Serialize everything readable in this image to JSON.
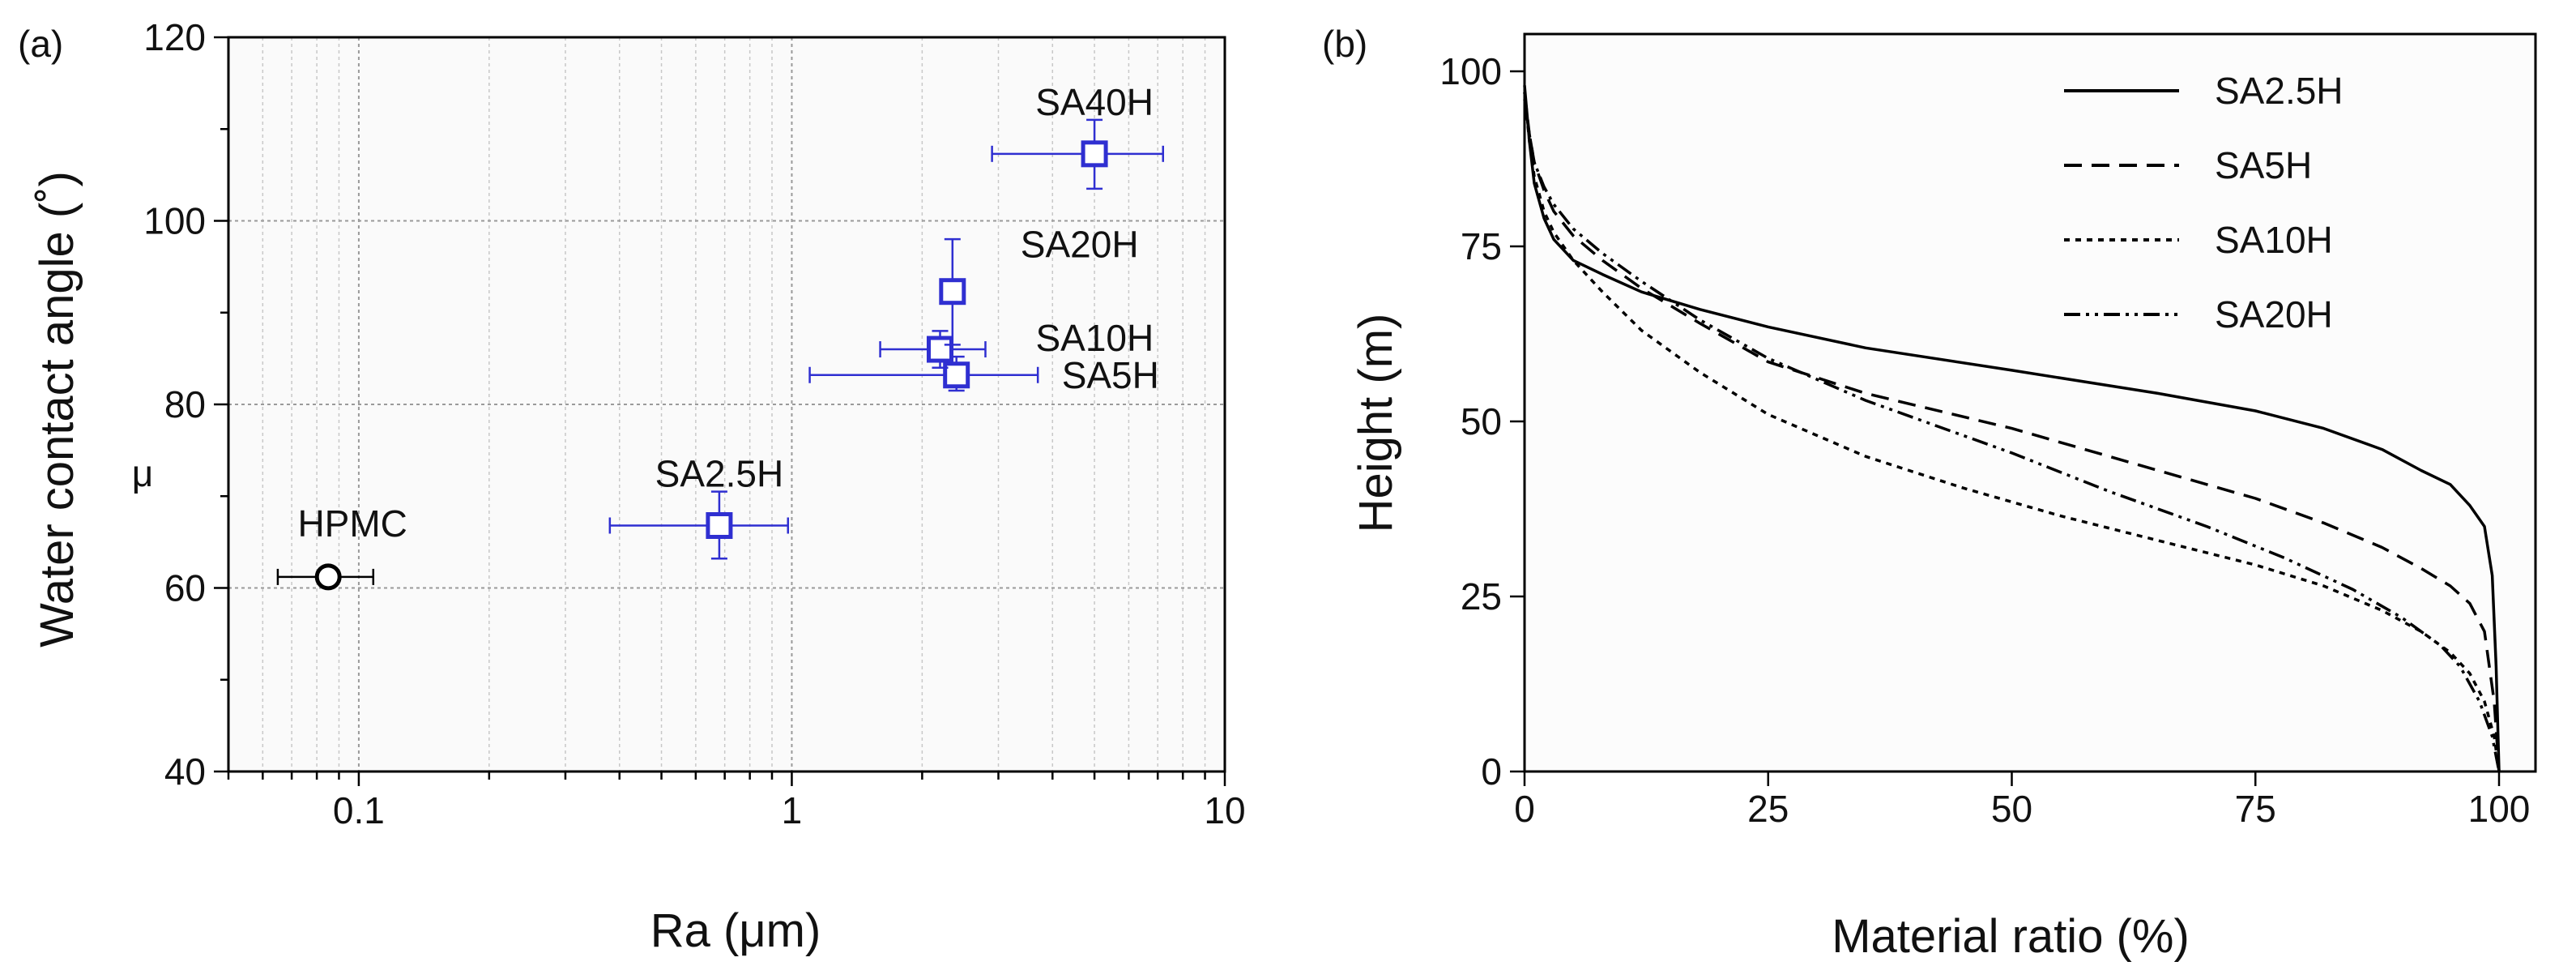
{
  "chart_data": [
    {
      "panel": "(a)",
      "type": "scatter",
      "xlabel": "Ra (μm)",
      "ylabel": "Water contact angle (˚)",
      "ylabel_extra": "μ",
      "xscale": "log",
      "xlim": [
        0.05,
        10
      ],
      "ylim": [
        40,
        120
      ],
      "xticks": [
        0.1,
        1,
        10
      ],
      "xtick_labels": [
        "0.1",
        "1",
        "10"
      ],
      "yticks": [
        40,
        60,
        80,
        100,
        120
      ],
      "ytick_labels": [
        "40",
        "60",
        "80",
        "100",
        "120"
      ],
      "grid": true,
      "points": [
        {
          "label": "HPMC",
          "x": 0.085,
          "y": 61.2,
          "xerr": [
            0.065,
            0.108
          ],
          "yerr": [
            61.2,
            61.2
          ],
          "marker": "circle",
          "color": "#000000",
          "label_pos": "above"
        },
        {
          "label": "SA2.5H",
          "x": 0.68,
          "y": 66.8,
          "xerr": [
            0.38,
            0.98
          ],
          "yerr": [
            63.2,
            70.5
          ],
          "marker": "square",
          "color": "#2f2fd1",
          "label_pos": "above"
        },
        {
          "label": "SA5H",
          "x": 2.4,
          "y": 83.2,
          "xerr": [
            1.1,
            3.7
          ],
          "yerr": [
            81.5,
            85.2
          ],
          "marker": "square",
          "color": "#2f2fd1",
          "label_pos": "right"
        },
        {
          "label": "SA10H",
          "x": 2.2,
          "y": 86.0,
          "xerr": [
            1.6,
            2.8
          ],
          "yerr": [
            84.0,
            88.0
          ],
          "marker": "square",
          "color": "#2f2fd1",
          "label_pos": "right"
        },
        {
          "label": "SA20H",
          "x": 2.35,
          "y": 92.3,
          "xerr": [
            2.25,
            2.45
          ],
          "yerr": [
            86.5,
            98.0
          ],
          "marker": "square",
          "color": "#2f2fd1",
          "label_pos": "above-right"
        },
        {
          "label": "SA40H",
          "x": 5.0,
          "y": 107.3,
          "xerr": [
            2.9,
            7.2
          ],
          "yerr": [
            103.5,
            111.0
          ],
          "marker": "square",
          "color": "#2f2fd1",
          "label_pos": "above"
        }
      ]
    },
    {
      "panel": "(b)",
      "type": "line",
      "xlabel": "Material ratio  (%)",
      "ylabel": "Height (m)",
      "xlim": [
        0,
        100
      ],
      "ylim": [
        0,
        100
      ],
      "xticks": [
        0,
        25,
        50,
        75,
        100
      ],
      "xtick_labels": [
        "0",
        "25",
        "50",
        "75",
        "100"
      ],
      "yticks": [
        0,
        25,
        50,
        75,
        100
      ],
      "ytick_labels": [
        "0",
        "25",
        "50",
        "75",
        "100"
      ],
      "grid": false,
      "legend": "top-right",
      "series": [
        {
          "name": "SA2.5H",
          "style": "solid",
          "x": [
            0,
            0.5,
            1,
            2,
            3,
            5,
            8,
            12,
            18,
            25,
            35,
            50,
            65,
            75,
            82,
            88,
            92,
            95,
            97,
            98.5,
            99.3,
            99.7,
            100
          ],
          "y": [
            98,
            90,
            84,
            79,
            76,
            73,
            71,
            68.5,
            66,
            63.5,
            60.5,
            57.3,
            54,
            51.5,
            49,
            46,
            43,
            41,
            38,
            35,
            28,
            15,
            0
          ]
        },
        {
          "name": "SA5H",
          "style": "dashed",
          "x": [
            0,
            0.5,
            1,
            2,
            3,
            5,
            8,
            12,
            18,
            25,
            35,
            50,
            65,
            75,
            82,
            88,
            92,
            95,
            97,
            98.5,
            99.5,
            100
          ],
          "y": [
            97,
            91,
            87,
            83,
            80,
            76.5,
            73,
            69,
            64,
            58.5,
            54,
            49,
            43,
            39,
            35.5,
            32,
            29,
            26.5,
            24,
            20,
            10,
            0
          ]
        },
        {
          "name": "SA10H",
          "style": "dotted",
          "x": [
            0,
            0.5,
            1,
            2,
            3,
            5,
            8,
            12,
            18,
            25,
            35,
            45,
            55,
            65,
            75,
            82,
            88,
            92,
            95,
            97,
            98.5,
            99.5,
            100
          ],
          "y": [
            97,
            90,
            85,
            80,
            77,
            73,
            68.5,
            63,
            57,
            51,
            45,
            40.5,
            36.5,
            33,
            29.5,
            26.5,
            23,
            20,
            17,
            14,
            10,
            5,
            0
          ]
        },
        {
          "name": "SA20H",
          "style": "dashdotdot",
          "x": [
            0,
            0.5,
            1,
            2,
            3,
            5,
            8,
            12,
            18,
            25,
            35,
            50,
            60,
            70,
            78,
            85,
            90,
            94,
            96,
            98,
            99.3,
            100
          ],
          "y": [
            96,
            91,
            87,
            83.5,
            81,
            77.5,
            74,
            70,
            64.5,
            59,
            53,
            45.5,
            40,
            35,
            30.5,
            26,
            22,
            18,
            15,
            10,
            5,
            0
          ]
        }
      ]
    }
  ]
}
